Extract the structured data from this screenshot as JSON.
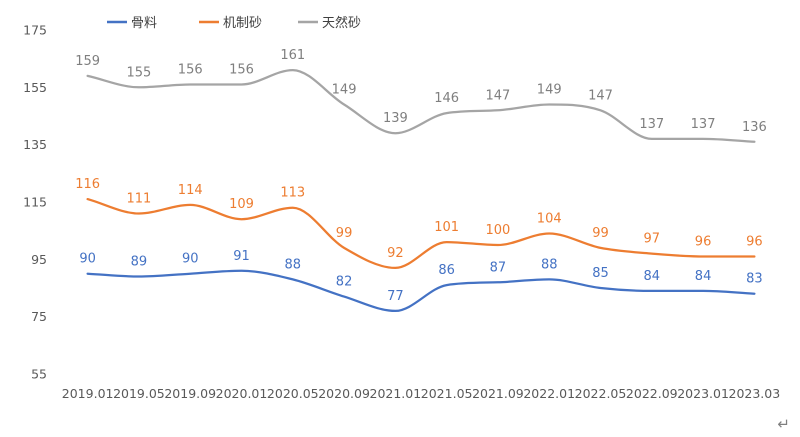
{
  "chart_data": {
    "type": "line",
    "title": "",
    "xlabel": "",
    "ylabel": "",
    "ylim": [
      55,
      175
    ],
    "yticks": [
      55,
      75,
      95,
      115,
      135,
      155,
      175
    ],
    "grid": false,
    "legend_position": "top-left",
    "smooth": true,
    "categories": [
      "2019.01",
      "2019.05",
      "2019.09",
      "2020.01",
      "2020.05",
      "2020.09",
      "2021.01",
      "2021.05",
      "2021.09",
      "2022.01",
      "2022.05",
      "2022.09",
      "2023.01",
      "2023.03"
    ],
    "series": [
      {
        "name": "骨料",
        "color": "#4472c4",
        "values": [
          90,
          89,
          90,
          91,
          88,
          82,
          77,
          86,
          87,
          88,
          85,
          84,
          84,
          83
        ]
      },
      {
        "name": "机制砂",
        "color": "#ed7d31",
        "values": [
          116,
          111,
          114,
          109,
          113,
          99,
          92,
          101,
          100,
          104,
          99,
          97,
          96,
          96
        ]
      },
      {
        "name": "天然砂",
        "color": "#a5a5a5",
        "values": [
          159,
          155,
          156,
          156,
          161,
          149,
          139,
          146,
          147,
          149,
          147,
          137,
          137,
          136
        ]
      }
    ]
  },
  "footer_mark": "↵"
}
